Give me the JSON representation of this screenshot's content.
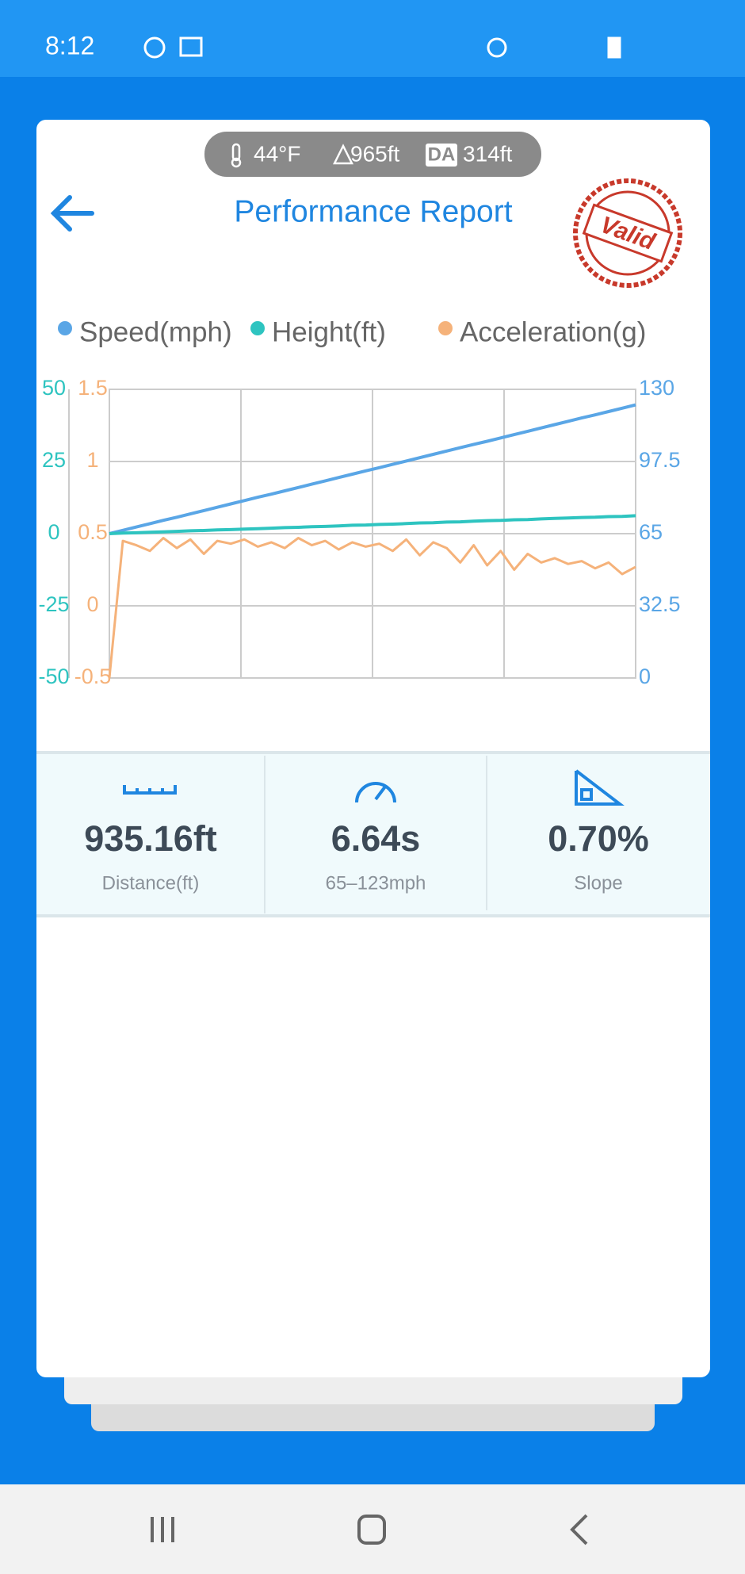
{
  "status_bar": {
    "time": "8:12"
  },
  "conditions": {
    "temperature": "44°F",
    "elevation": "965ft",
    "da_badge": "DA",
    "density_altitude": "314ft"
  },
  "header": {
    "title": "Performance Report",
    "stamp": "Valid"
  },
  "chart_data": {
    "type": "line",
    "series": [
      {
        "name": "Speed(mph)",
        "color": "#5aa6e6",
        "axis": "y2",
        "values": [
          65,
          66.5,
          68.0,
          69.5,
          71.0,
          72.4,
          73.9,
          75.4,
          76.9,
          78.4,
          79.9,
          81.4,
          82.8,
          84.3,
          85.8,
          87.3,
          88.8,
          90.3,
          91.8,
          93.3,
          94.7,
          96.2,
          97.7,
          99.2,
          100.7,
          102.2,
          103.7,
          105.2,
          106.6,
          108.1,
          109.6,
          111.1,
          112.6,
          114.1,
          115.6,
          117.1,
          118.5,
          120.0,
          121.5,
          123.0
        ]
      },
      {
        "name": "Height(ft)",
        "color": "#2ec4c0",
        "axis": "y",
        "values": [
          0,
          0.2,
          0.3,
          0.5,
          0.6,
          0.8,
          1.0,
          1.1,
          1.3,
          1.4,
          1.6,
          1.7,
          1.9,
          2.1,
          2.2,
          2.4,
          2.5,
          2.7,
          2.9,
          3.0,
          3.2,
          3.3,
          3.5,
          3.7,
          3.8,
          4.0,
          4.1,
          4.3,
          4.5,
          4.6,
          4.8,
          4.9,
          5.1,
          5.3,
          5.4,
          5.6,
          5.7,
          5.9,
          6.0,
          6.2
        ]
      },
      {
        "name": "Acceleration(g)",
        "color": "#f5b27a",
        "axis": "y3",
        "values": [
          -0.5,
          0.45,
          0.42,
          0.38,
          0.47,
          0.4,
          0.46,
          0.36,
          0.45,
          0.43,
          0.46,
          0.41,
          0.44,
          0.4,
          0.47,
          0.42,
          0.45,
          0.39,
          0.44,
          0.41,
          0.43,
          0.38,
          0.46,
          0.35,
          0.44,
          0.4,
          0.3,
          0.42,
          0.28,
          0.38,
          0.25,
          0.36,
          0.3,
          0.33,
          0.29,
          0.31,
          0.26,
          0.3,
          0.22,
          0.27
        ]
      }
    ],
    "ylim": [
      -50,
      50
    ],
    "yticks": [
      -50,
      -25,
      0,
      25,
      50
    ],
    "y3lim": [
      -0.5,
      1.5
    ],
    "y3ticks": [
      -0.5,
      0,
      0.5,
      1,
      1.5
    ],
    "y2lim": [
      0,
      130
    ],
    "y2ticks": [
      0,
      32.5,
      65,
      97.5,
      130
    ],
    "grid": true
  },
  "stats": [
    {
      "value": "935.16ft",
      "label": "Distance(ft)"
    },
    {
      "value": "6.64s",
      "label": "65–123mph"
    },
    {
      "value": "0.70%",
      "label": "Slope"
    }
  ]
}
